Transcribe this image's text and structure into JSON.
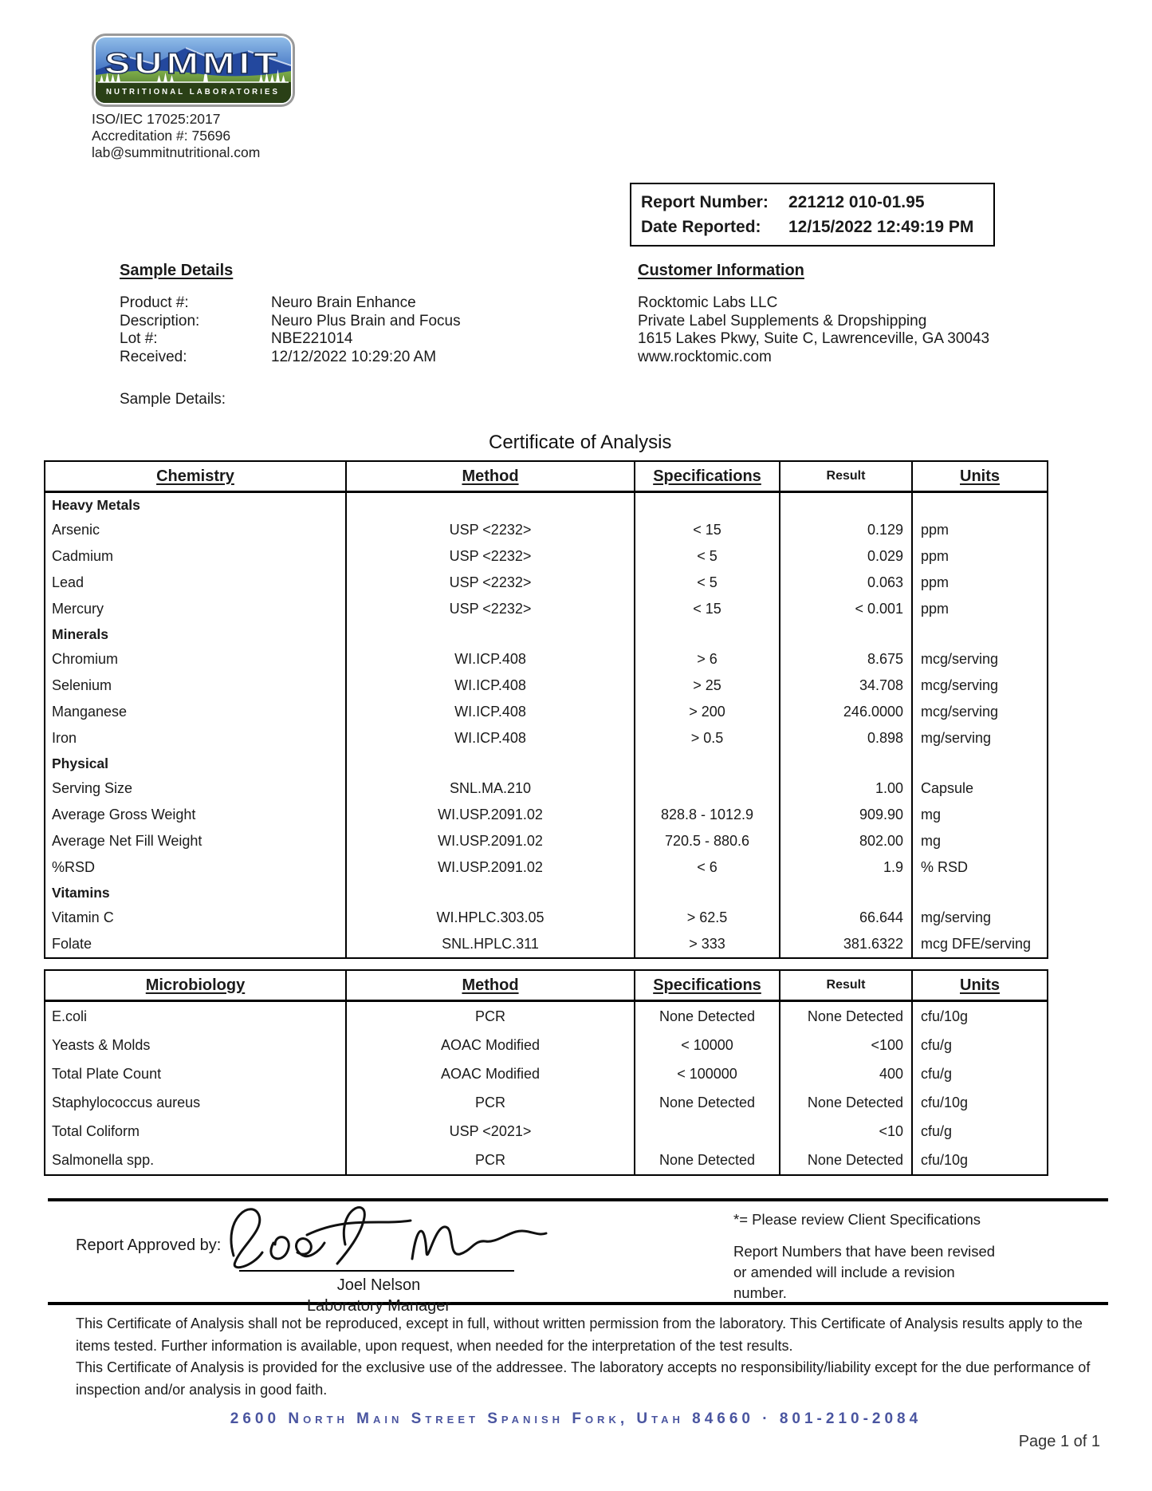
{
  "logo": {
    "brand": "SUMMIT",
    "tagline": "NUTRITIONAL LABORATORIES"
  },
  "header": {
    "iso": "ISO/IEC 17025:2017",
    "accreditation": "Accreditation #: 75696",
    "email": "lab@summitnutritional.com"
  },
  "report_box": {
    "report_number_label": "Report Number:",
    "report_number": "221212 010-01.95",
    "date_reported_label": "Date Reported:",
    "date_reported": "12/15/2022 12:49:19 PM"
  },
  "sample_details": {
    "heading": "Sample Details",
    "fields": [
      {
        "label": "Product #:",
        "value": "Neuro Brain Enhance"
      },
      {
        "label": "Description:",
        "value": "Neuro Plus Brain and Focus"
      },
      {
        "label": "Lot #:",
        "value": "NBE221014"
      },
      {
        "label": "Received:",
        "value": "12/12/2022 10:29:20 AM"
      }
    ],
    "extra_label": "Sample Details:"
  },
  "customer_info": {
    "heading": "Customer Information",
    "lines": [
      "Rocktomic Labs LLC",
      "Private Label Supplements & Dropshipping",
      "1615 Lakes Pkwy, Suite C, Lawrenceville, GA 30043",
      "www.rocktomic.com"
    ]
  },
  "title": "Certificate of Analysis",
  "chemistry_table": {
    "headers": [
      "Chemistry",
      "Method",
      "Specifications",
      "Result",
      "Units"
    ],
    "sections": [
      {
        "header": "Heavy Metals",
        "rows": [
          {
            "analyte": "Arsenic",
            "method": "USP <2232>",
            "spec": "< 15",
            "result": "0.129",
            "units": "ppm"
          },
          {
            "analyte": "Cadmium",
            "method": "USP <2232>",
            "spec": "< 5",
            "result": "0.029",
            "units": "ppm"
          },
          {
            "analyte": "Lead",
            "method": "USP <2232>",
            "spec": "< 5",
            "result": "0.063",
            "units": "ppm"
          },
          {
            "analyte": "Mercury",
            "method": "USP <2232>",
            "spec": "< 15",
            "result": "< 0.001",
            "units": "ppm"
          }
        ]
      },
      {
        "header": "Minerals",
        "rows": [
          {
            "analyte": "Chromium",
            "method": "WI.ICP.408",
            "spec": "> 6",
            "result": "8.675",
            "units": "mcg/serving"
          },
          {
            "analyte": "Selenium",
            "method": "WI.ICP.408",
            "spec": "> 25",
            "result": "34.708",
            "units": "mcg/serving"
          },
          {
            "analyte": "Manganese",
            "method": "WI.ICP.408",
            "spec": "> 200",
            "result": "246.0000",
            "units": "mcg/serving"
          },
          {
            "analyte": "Iron",
            "method": "WI.ICP.408",
            "spec": "> 0.5",
            "result": "0.898",
            "units": "mg/serving"
          }
        ]
      },
      {
        "header": "Physical",
        "rows": [
          {
            "analyte": "Serving Size",
            "method": "SNL.MA.210",
            "spec": "",
            "result": "1.00",
            "units": "Capsule"
          },
          {
            "analyte": "Average Gross Weight",
            "method": "WI.USP.2091.02",
            "spec": "828.8 - 1012.9",
            "result": "909.90",
            "units": "mg"
          },
          {
            "analyte": "Average Net Fill Weight",
            "method": "WI.USP.2091.02",
            "spec": "720.5 - 880.6",
            "result": "802.00",
            "units": "mg"
          },
          {
            "analyte": "%RSD",
            "method": "WI.USP.2091.02",
            "spec": "< 6",
            "result": "1.9",
            "units": "% RSD"
          }
        ]
      },
      {
        "header": "Vitamins",
        "rows": [
          {
            "analyte": "Vitamin C",
            "method": "WI.HPLC.303.05",
            "spec": "> 62.5",
            "result": "66.644",
            "units": "mg/serving"
          },
          {
            "analyte": "Folate",
            "method": "SNL.HPLC.311",
            "spec": "> 333",
            "result": "381.6322",
            "units": "mcg DFE/serving"
          }
        ]
      }
    ]
  },
  "microbiology_table": {
    "headers": [
      "Microbiology",
      "Method",
      "Specifications",
      "Result",
      "Units"
    ],
    "rows": [
      {
        "analyte": "E.coli",
        "method": "PCR",
        "spec": "None Detected",
        "result": "None Detected",
        "units": "cfu/10g"
      },
      {
        "analyte": "Yeasts & Molds",
        "method": "AOAC Modified",
        "spec": "< 10000",
        "result": "<100",
        "units": "cfu/g"
      },
      {
        "analyte": "Total Plate Count",
        "method": "AOAC Modified",
        "spec": "< 100000",
        "result": "400",
        "units": "cfu/g"
      },
      {
        "analyte": "Staphylococcus aureus",
        "method": "PCR",
        "spec": "None Detected",
        "result": "None Detected",
        "units": "cfu/10g"
      },
      {
        "analyte": "Total Coliform",
        "method": "USP <2021>",
        "spec": "",
        "result": "<10",
        "units": "cfu/g"
      },
      {
        "analyte": "Salmonella spp.",
        "method": "PCR",
        "spec": "None Detected",
        "result": "None Detected",
        "units": "cfu/10g"
      }
    ]
  },
  "approval": {
    "label": "Report Approved by:",
    "signer_name": "Joel Nelson",
    "signer_title": "Laboratory Manager"
  },
  "notes": {
    "star_note": "*= Please review Client Specifications",
    "revision_note": "Report Numbers that have been revised or amended will include a revision number."
  },
  "disclaimer": {
    "p1": "This Certificate of Analysis shall not be reproduced, except in full, without written permission from the laboratory. This Certificate of Analysis results apply to the items tested. Further information is available, upon request, when needed for the interpretation of the test results.",
    "p2": "This Certificate of Analysis is provided for the exclusive use of the addressee. The laboratory accepts no responsibility/liability except for the due performance of inspection and/or analysis in good faith."
  },
  "footer": {
    "address": "2600 North Main Street Spanish Fork, Utah 84660 · 801-210-2084",
    "page": "Page 1 of 1"
  },
  "colors": {
    "footer_blue": "#4a55a0",
    "logo_band_green": "#2a4016"
  }
}
